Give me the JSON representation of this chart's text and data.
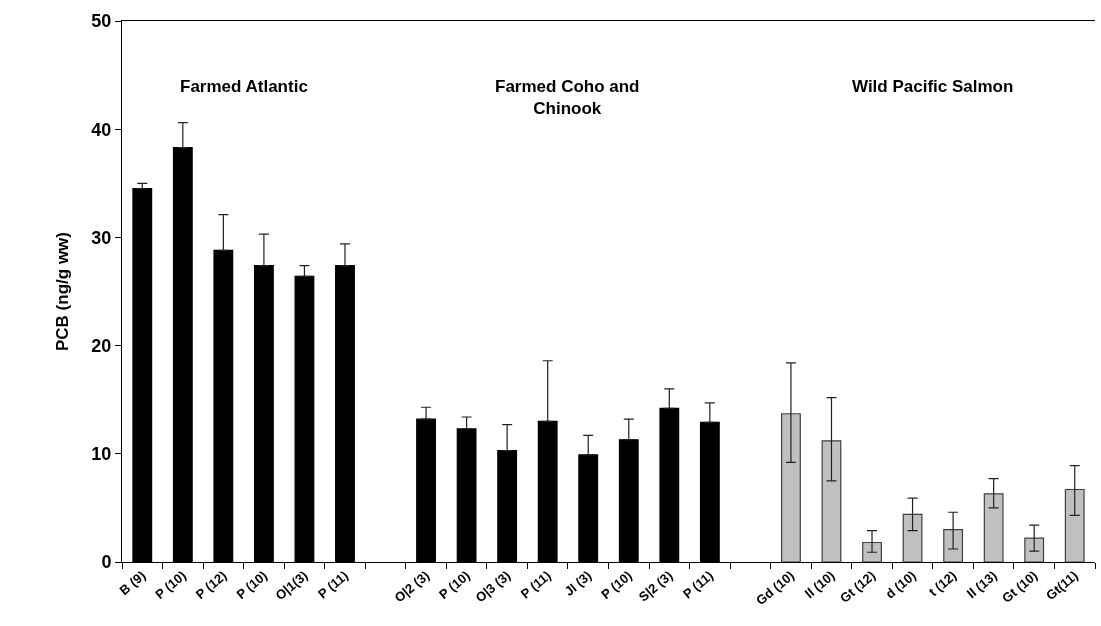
{
  "chart_data": {
    "type": "bar",
    "ylabel": "PCB (ng/g ww)",
    "categories": [
      "B (9)",
      "P (10)",
      "P (12)",
      "P (10)",
      "O|1(3)",
      "P (11)",
      null,
      "O|2 (3)",
      "P (10)",
      "O|3 (3)",
      "P (11)",
      "JI (3)",
      "P (10)",
      "S|2 (3)",
      "P (11)",
      null,
      "Gd (10)",
      "ll (10)",
      "Gt (12)",
      "d (10)",
      "t (12)",
      "ll (13)",
      "Gt (10)",
      "Gt(11)"
    ],
    "values": [
      34.5,
      38.3,
      28.8,
      27.4,
      26.4,
      27.4,
      null,
      13.2,
      12.3,
      10.3,
      13.0,
      9.9,
      11.3,
      14.2,
      12.9,
      null,
      13.7,
      11.2,
      1.8,
      4.4,
      3.0,
      6.3,
      2.2,
      6.7
    ],
    "errors": [
      [
        34.5,
        35.0
      ],
      [
        38.3,
        40.6
      ],
      [
        28.8,
        32.1
      ],
      [
        27.4,
        30.3
      ],
      [
        26.4,
        27.4
      ],
      [
        27.4,
        29.4
      ],
      null,
      [
        13.2,
        14.3
      ],
      [
        12.3,
        13.4
      ],
      [
        10.3,
        12.7
      ],
      [
        13.0,
        18.6
      ],
      [
        9.9,
        11.7
      ],
      [
        11.3,
        13.2
      ],
      [
        14.2,
        16.0
      ],
      [
        12.9,
        14.7
      ],
      null,
      [
        9.2,
        18.4
      ],
      [
        7.5,
        15.2
      ],
      [
        0.9,
        2.9
      ],
      [
        2.9,
        5.9
      ],
      [
        1.2,
        4.6
      ],
      [
        5.0,
        7.7
      ],
      [
        1.0,
        3.4
      ],
      [
        4.3,
        8.9
      ]
    ],
    "colors": [
      "#000000",
      "#000000",
      "#000000",
      "#000000",
      "#000000",
      "#000000",
      null,
      "#000000",
      "#000000",
      "#000000",
      "#000000",
      "#000000",
      "#000000",
      "#000000",
      "#000000",
      null,
      "#c0c0c0",
      "#c0c0c0",
      "#c0c0c0",
      "#c0c0c0",
      "#c0c0c0",
      "#c0c0c0",
      "#c0c0c0",
      "#c0c0c0"
    ],
    "ylim": [
      0,
      50
    ],
    "yticks": [
      0,
      10,
      20,
      30,
      40,
      50
    ],
    "grid": false,
    "annotations": [
      "Farmed Atlantic",
      "Farmed Coho and Chinook",
      "Wild Pacific Salmon"
    ]
  }
}
